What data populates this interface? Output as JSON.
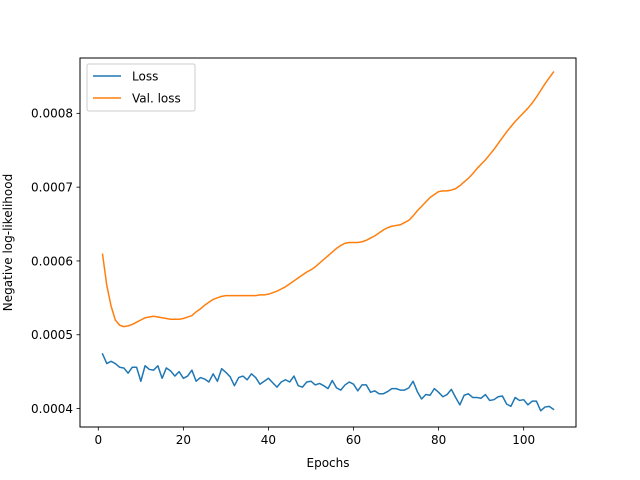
{
  "chart_data": {
    "type": "line",
    "title": "",
    "xlabel": "Epochs",
    "ylabel": "Negative log-likelihood",
    "xlim": [
      -4.3,
      112.3
    ],
    "ylim": [
      0.000375,
      0.000875
    ],
    "xticks": [
      0,
      20,
      40,
      60,
      80,
      100
    ],
    "xtick_labels": [
      "0",
      "20",
      "40",
      "60",
      "80",
      "100"
    ],
    "yticks": [
      0.0004,
      0.0005,
      0.0006,
      0.0007,
      0.0008
    ],
    "ytick_labels": [
      "0.0004",
      "0.0005",
      "0.0006",
      "0.0007",
      "0.0008"
    ],
    "grid": false,
    "legend": "top-left",
    "series": [
      {
        "name": "Loss",
        "color": "#1f77b4",
        "points": [
          [
            1,
            0.000474
          ],
          [
            2,
            0.000461
          ],
          [
            3,
            0.000464
          ],
          [
            4,
            0.000461
          ],
          [
            5,
            0.000456
          ],
          [
            6,
            0.000455
          ],
          [
            7,
            0.000448
          ],
          [
            8,
            0.000456
          ],
          [
            9,
            0.000456
          ],
          [
            10,
            0.000437
          ],
          [
            11,
            0.000458
          ],
          [
            12,
            0.000453
          ],
          [
            13,
            0.000452
          ],
          [
            14,
            0.000458
          ],
          [
            15,
            0.000441
          ],
          [
            16,
            0.000455
          ],
          [
            17,
            0.000451
          ],
          [
            18,
            0.000444
          ],
          [
            19,
            0.00045
          ],
          [
            20,
            0.000441
          ],
          [
            21,
            0.000444
          ],
          [
            22,
            0.000452
          ],
          [
            23,
            0.000437
          ],
          [
            24,
            0.000442
          ],
          [
            25,
            0.00044
          ],
          [
            26,
            0.000436
          ],
          [
            27,
            0.000447
          ],
          [
            28,
            0.000437
          ],
          [
            29,
            0.000454
          ],
          [
            30,
            0.000449
          ],
          [
            31,
            0.000443
          ],
          [
            32,
            0.000431
          ],
          [
            33,
            0.000442
          ],
          [
            34,
            0.000444
          ],
          [
            35,
            0.000439
          ],
          [
            36,
            0.000447
          ],
          [
            37,
            0.000442
          ],
          [
            38,
            0.000433
          ],
          [
            39,
            0.000437
          ],
          [
            40,
            0.000441
          ],
          [
            41,
            0.000435
          ],
          [
            42,
            0.000429
          ],
          [
            43,
            0.000436
          ],
          [
            44,
            0.000439
          ],
          [
            45,
            0.000436
          ],
          [
            46,
            0.000444
          ],
          [
            47,
            0.000431
          ],
          [
            48,
            0.000429
          ],
          [
            49,
            0.000436
          ],
          [
            50,
            0.000437
          ],
          [
            51,
            0.000432
          ],
          [
            52,
            0.000434
          ],
          [
            53,
            0.000431
          ],
          [
            54,
            0.000427
          ],
          [
            55,
            0.000438
          ],
          [
            56,
            0.000428
          ],
          [
            57,
            0.000425
          ],
          [
            58,
            0.000432
          ],
          [
            59,
            0.000436
          ],
          [
            60,
            0.000433
          ],
          [
            61,
            0.000424
          ],
          [
            62,
            0.000432
          ],
          [
            63,
            0.000432
          ],
          [
            64,
            0.000422
          ],
          [
            65,
            0.000424
          ],
          [
            66,
            0.00042
          ],
          [
            67,
            0.00042
          ],
          [
            68,
            0.000423
          ],
          [
            69,
            0.000427
          ],
          [
            70,
            0.000427
          ],
          [
            71,
            0.000425
          ],
          [
            72,
            0.000425
          ],
          [
            73,
            0.000428
          ],
          [
            74,
            0.000437
          ],
          [
            75,
            0.000423
          ],
          [
            76,
            0.000413
          ],
          [
            77,
            0.000419
          ],
          [
            78,
            0.000418
          ],
          [
            79,
            0.000427
          ],
          [
            80,
            0.000422
          ],
          [
            81,
            0.000416
          ],
          [
            82,
            0.000419
          ],
          [
            83,
            0.000426
          ],
          [
            84,
            0.000415
          ],
          [
            85,
            0.000405
          ],
          [
            86,
            0.000418
          ],
          [
            87,
            0.00042
          ],
          [
            88,
            0.000415
          ],
          [
            89,
            0.000415
          ],
          [
            90,
            0.000414
          ],
          [
            91,
            0.000419
          ],
          [
            92,
            0.000411
          ],
          [
            93,
            0.000412
          ],
          [
            94,
            0.000416
          ],
          [
            95,
            0.000417
          ],
          [
            96,
            0.000406
          ],
          [
            97,
            0.000403
          ],
          [
            98,
            0.000415
          ],
          [
            99,
            0.000411
          ],
          [
            100,
            0.000412
          ],
          [
            101,
            0.000405
          ],
          [
            102,
            0.00041
          ],
          [
            103,
            0.00041
          ],
          [
            104,
            0.000397
          ],
          [
            105,
            0.000402
          ],
          [
            106,
            0.000403
          ],
          [
            107,
            0.000399
          ]
        ]
      },
      {
        "name": "Val. loss",
        "color": "#ff7f0e",
        "points": [
          [
            1,
            0.000609
          ],
          [
            2,
            0.000567
          ],
          [
            3,
            0.000539
          ],
          [
            4,
            0.00052
          ],
          [
            5,
            0.000513
          ],
          [
            6,
            0.000511
          ],
          [
            7,
            0.000512
          ],
          [
            8,
            0.000514
          ],
          [
            9,
            0.000517
          ],
          [
            10,
            0.00052
          ],
          [
            11,
            0.000523
          ],
          [
            12,
            0.000524
          ],
          [
            13,
            0.000525
          ],
          [
            14,
            0.000524
          ],
          [
            15,
            0.000523
          ],
          [
            16,
            0.000522
          ],
          [
            17,
            0.000521
          ],
          [
            18,
            0.000521
          ],
          [
            19,
            0.000521
          ],
          [
            20,
            0.000522
          ],
          [
            21,
            0.000524
          ],
          [
            22,
            0.000526
          ],
          [
            23,
            0.000531
          ],
          [
            24,
            0.000535
          ],
          [
            25,
            0.00054
          ],
          [
            26,
            0.000544
          ],
          [
            27,
            0.000548
          ],
          [
            28,
            0.00055
          ],
          [
            29,
            0.000552
          ],
          [
            30,
            0.000553
          ],
          [
            31,
            0.000553
          ],
          [
            32,
            0.000553
          ],
          [
            33,
            0.000553
          ],
          [
            34,
            0.000553
          ],
          [
            35,
            0.000553
          ],
          [
            36,
            0.000553
          ],
          [
            37,
            0.000553
          ],
          [
            38,
            0.000554
          ],
          [
            39,
            0.000554
          ],
          [
            40,
            0.000555
          ],
          [
            41,
            0.000557
          ],
          [
            42,
            0.000559
          ],
          [
            43,
            0.000562
          ],
          [
            44,
            0.000565
          ],
          [
            45,
            0.000569
          ],
          [
            46,
            0.000573
          ],
          [
            47,
            0.000577
          ],
          [
            48,
            0.000581
          ],
          [
            49,
            0.000585
          ],
          [
            50,
            0.000588
          ],
          [
            51,
            0.000592
          ],
          [
            52,
            0.000597
          ],
          [
            53,
            0.000602
          ],
          [
            54,
            0.000607
          ],
          [
            55,
            0.000612
          ],
          [
            56,
            0.000617
          ],
          [
            57,
            0.000621
          ],
          [
            58,
            0.000624
          ],
          [
            59,
            0.000625
          ],
          [
            60,
            0.000625
          ],
          [
            61,
            0.000625
          ],
          [
            62,
            0.000626
          ],
          [
            63,
            0.000628
          ],
          [
            64,
            0.000631
          ],
          [
            65,
            0.000634
          ],
          [
            66,
            0.000638
          ],
          [
            67,
            0.000642
          ],
          [
            68,
            0.000645
          ],
          [
            69,
            0.000647
          ],
          [
            70,
            0.000648
          ],
          [
            71,
            0.000649
          ],
          [
            72,
            0.000652
          ],
          [
            73,
            0.000655
          ],
          [
            74,
            0.000661
          ],
          [
            75,
            0.000668
          ],
          [
            76,
            0.000674
          ],
          [
            77,
            0.00068
          ],
          [
            78,
            0.000686
          ],
          [
            79,
            0.00069
          ],
          [
            80,
            0.000694
          ],
          [
            81,
            0.000695
          ],
          [
            82,
            0.000695
          ],
          [
            83,
            0.000696
          ],
          [
            84,
            0.000698
          ],
          [
            85,
            0.000702
          ],
          [
            86,
            0.000707
          ],
          [
            87,
            0.000712
          ],
          [
            88,
            0.000718
          ],
          [
            89,
            0.000725
          ],
          [
            90,
            0.000731
          ],
          [
            91,
            0.000737
          ],
          [
            92,
            0.000744
          ],
          [
            93,
            0.000751
          ],
          [
            94,
            0.000759
          ],
          [
            95,
            0.000767
          ],
          [
            96,
            0.000775
          ],
          [
            97,
            0.000782
          ],
          [
            98,
            0.000789
          ],
          [
            99,
            0.000795
          ],
          [
            100,
            0.000801
          ],
          [
            101,
            0.000807
          ],
          [
            102,
            0.000814
          ],
          [
            103,
            0.000822
          ],
          [
            104,
            0.000831
          ],
          [
            105,
            0.00084
          ],
          [
            106,
            0.000848
          ],
          [
            107,
            0.000856
          ]
        ]
      }
    ]
  }
}
